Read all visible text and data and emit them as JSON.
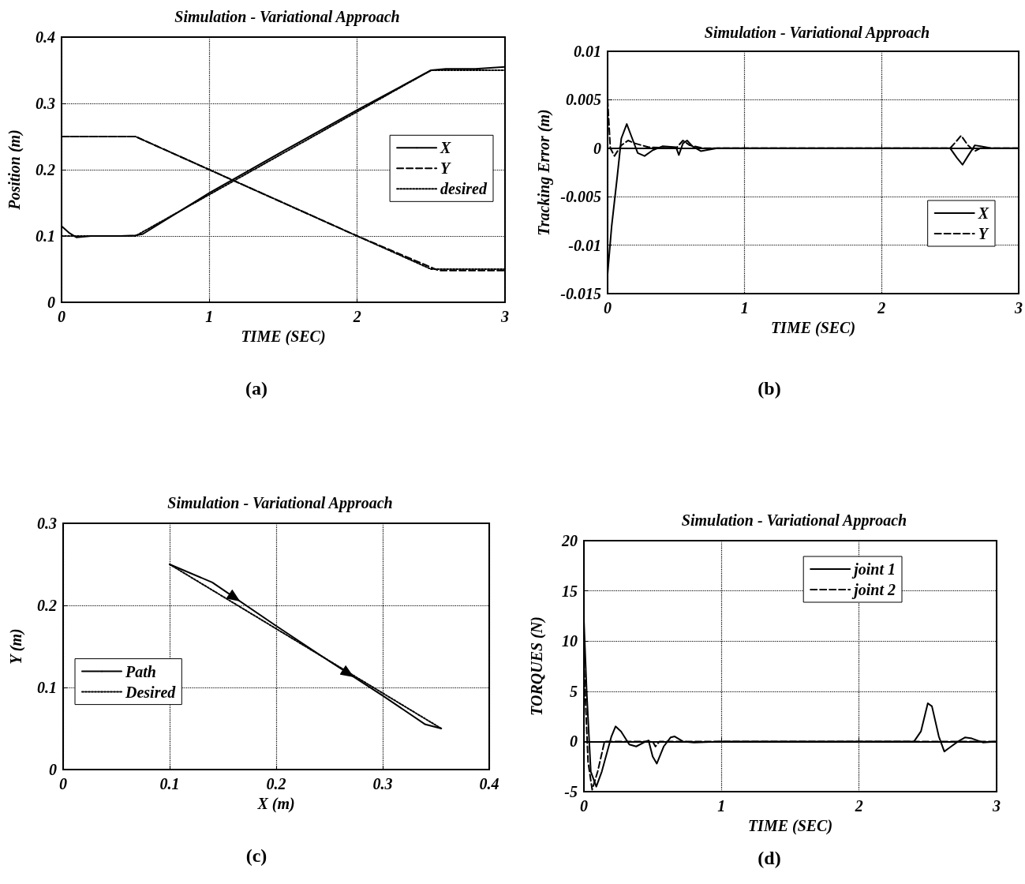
{
  "chart_data": [
    {
      "type": "line",
      "title": "Simulation - Variational Approach",
      "xlabel": "TIME (SEC)",
      "ylabel": "Position (m)",
      "annotations": [
        "(a)"
      ],
      "xlim": [
        0,
        3
      ],
      "xticks": [
        0,
        1,
        2,
        3
      ],
      "ylim": [
        0,
        0.4
      ],
      "yticks": [
        0,
        0.1,
        0.2,
        0.3,
        0.4
      ],
      "grid": true,
      "legend": "right",
      "marker": "none",
      "series": [
        {
          "name": "X",
          "color": "#000000",
          "line_style": "solid",
          "x": [
            0,
            0.05,
            0.1,
            0.2,
            0.3,
            0.4,
            0.5,
            0.55,
            1,
            1.5,
            2,
            2.5,
            2.6,
            2.8,
            3
          ],
          "values": [
            0.115,
            0.105,
            0.098,
            0.1,
            0.1,
            0.1,
            0.101,
            0.103,
            0.165,
            0.228,
            0.29,
            0.35,
            0.352,
            0.352,
            0.355
          ]
        },
        {
          "name": "Y",
          "color": "#000000",
          "line_style": "dashed",
          "x": [
            0,
            0.5,
            1,
            1.5,
            2,
            2.55,
            3
          ],
          "values": [
            0.25,
            0.25,
            0.2,
            0.15,
            0.1,
            0.048,
            0.048
          ]
        },
        {
          "name": "desired",
          "color": "#000000",
          "line_style": "dotted",
          "x": [
            0,
            0.5,
            2.5,
            3
          ],
          "values": [
            0.1,
            0.1,
            0.35,
            0.35
          ]
        },
        {
          "color": "#000000",
          "line_style": "dotted",
          "x": [
            0,
            0.5,
            2.5,
            3
          ],
          "values": [
            0.25,
            0.25,
            0.05,
            0.05
          ]
        }
      ]
    },
    {
      "type": "line",
      "title": "Simulation - Variational Approach",
      "xlabel": "TIME (SEC)",
      "ylabel": "Tracking Error (m)",
      "annotations": [
        "(b)"
      ],
      "xlim": [
        0,
        3
      ],
      "xticks": [
        0,
        1,
        2,
        3
      ],
      "ylim": [
        -0.015,
        0.01
      ],
      "yticks": [
        -0.015,
        -0.01,
        -0.005,
        0,
        0.005,
        0.01
      ],
      "grid": true,
      "legend": "bottom right",
      "marker": "none",
      "series": [
        {
          "name": "X",
          "color": "#000000",
          "line_style": "solid",
          "x": [
            0,
            0.03,
            0.07,
            0.1,
            0.14,
            0.18,
            0.22,
            0.27,
            0.33,
            0.4,
            0.5,
            0.52,
            0.55,
            0.58,
            0.62,
            0.68,
            0.8,
            2.5,
            2.55,
            2.59,
            2.63,
            2.68,
            2.72,
            2.8,
            3
          ],
          "values": [
            -0.013,
            -0.008,
            -0.003,
            0.001,
            0.0025,
            0.001,
            -0.0005,
            -0.0008,
            -0.0002,
            0.0002,
            0.0001,
            -0.0007,
            0.0005,
            0.0008,
            0.0002,
            -0.0003,
            0,
            0,
            -0.001,
            -0.0017,
            -0.0008,
            0.0003,
            0.0002,
            0,
            0
          ]
        },
        {
          "name": "Y",
          "color": "#000000",
          "line_style": "dashed",
          "x": [
            0,
            0.02,
            0.05,
            0.1,
            0.15,
            0.2,
            0.3,
            0.5,
            0.55,
            0.6,
            0.7,
            2.5,
            2.55,
            2.58,
            2.63,
            2.68,
            2.72,
            3
          ],
          "values": [
            0.005,
            0,
            -0.0008,
            0.0003,
            0.0008,
            0.0005,
            0.0001,
            0,
            0.0008,
            0.0003,
            0,
            0,
            0.0008,
            0.0013,
            0.0003,
            -0.0003,
            0,
            0
          ]
        }
      ]
    },
    {
      "type": "line",
      "title": "Simulation - Variational Approach",
      "xlabel": "X (m)",
      "ylabel": "Y (m)",
      "annotations": [
        "(c)"
      ],
      "xlim": [
        0,
        0.4
      ],
      "xticks": [
        0,
        0.1,
        0.2,
        0.3,
        0.4
      ],
      "ylim": [
        0,
        0.3
      ],
      "yticks": [
        0,
        0.1,
        0.2,
        0.3
      ],
      "grid": true,
      "legend": "left",
      "marker": "none",
      "series": [
        {
          "name": "Path",
          "color": "#000000",
          "line_style": "solid",
          "x": [
            0.1,
            0.14,
            0.2,
            0.25,
            0.3,
            0.34,
            0.355
          ],
          "values": [
            0.25,
            0.228,
            0.175,
            0.132,
            0.09,
            0.055,
            0.05
          ]
        },
        {
          "name": "Desired",
          "color": "#000000",
          "line_style": "dotted",
          "x": [
            0.1,
            0.355
          ],
          "values": [
            0.25,
            0.05
          ]
        }
      ]
    },
    {
      "type": "line",
      "title": "Simulation - Variational Approach",
      "xlabel": "TIME (SEC)",
      "ylabel": "TORQUES (N)",
      "annotations": [
        "(d)"
      ],
      "xlim": [
        0,
        3
      ],
      "xticks": [
        0,
        1,
        2,
        3
      ],
      "ylim": [
        -5,
        20
      ],
      "yticks": [
        -5,
        0,
        5,
        10,
        15,
        20
      ],
      "grid": true,
      "legend": "top right",
      "marker": "none",
      "series": [
        {
          "name": "joint 1",
          "color": "#000000",
          "line_style": "solid",
          "x": [
            0,
            0.02,
            0.05,
            0.09,
            0.13,
            0.2,
            0.23,
            0.27,
            0.33,
            0.38,
            0.45,
            0.47,
            0.5,
            0.53,
            0.58,
            0.63,
            0.66,
            0.72,
            0.8,
            1,
            2.4,
            2.45,
            2.5,
            2.53,
            2.58,
            2.62,
            2.65,
            2.72,
            2.77,
            2.82,
            2.9,
            3
          ],
          "values": [
            12,
            5,
            -3,
            -4.5,
            -3,
            0.5,
            1.5,
            1,
            -0.3,
            -0.5,
            0,
            0.1,
            -1.5,
            -2.2,
            -0.5,
            0.4,
            0.5,
            0,
            -0.1,
            0,
            0,
            1,
            3.8,
            3.5,
            0.5,
            -1,
            -0.7,
            0,
            0.4,
            0.3,
            -0.1,
            0
          ]
        },
        {
          "name": "joint 2",
          "color": "#000000",
          "line_style": "dashed",
          "x": [
            0,
            0.03,
            0.06,
            0.1,
            0.15,
            0.3,
            0.5,
            0.52,
            0.55,
            1,
            3
          ],
          "values": [
            8,
            -2,
            -4.8,
            -3,
            0,
            0,
            0,
            -0.5,
            0,
            0,
            0
          ]
        }
      ]
    }
  ]
}
